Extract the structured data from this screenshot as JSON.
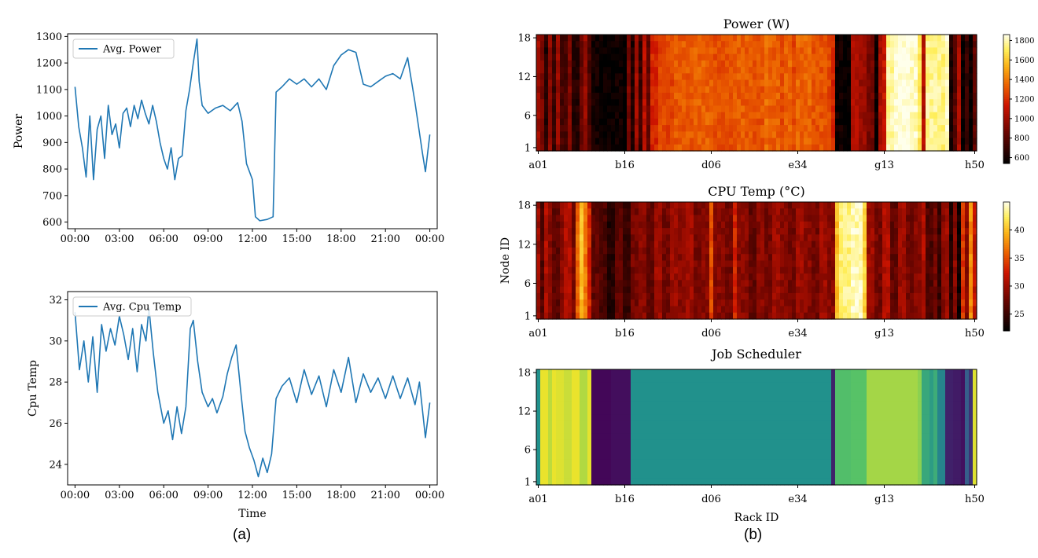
{
  "panels": {
    "a": "(a)",
    "b": "(b)"
  },
  "chart_data": [
    {
      "type": "line",
      "panel": "(a) top",
      "title": "",
      "xlabel": "",
      "ylabel": "Power",
      "legend": "Avg. Power",
      "legend_position": "top-left",
      "xticks": [
        "00:00",
        "03:00",
        "06:00",
        "09:00",
        "12:00",
        "15:00",
        "18:00",
        "21:00",
        "00:00"
      ],
      "yticks": [
        600,
        700,
        800,
        900,
        1000,
        1100,
        1200,
        1300
      ],
      "xlim": [
        -0.5,
        24.5
      ],
      "ylim": [
        575,
        1310
      ],
      "color": "#1f77b4",
      "grid": false,
      "points": [
        [
          0,
          1110
        ],
        [
          0.25,
          960
        ],
        [
          0.5,
          880
        ],
        [
          0.75,
          770
        ],
        [
          1,
          1000
        ],
        [
          1.25,
          760
        ],
        [
          1.5,
          950
        ],
        [
          1.75,
          1000
        ],
        [
          2,
          840
        ],
        [
          2.25,
          1040
        ],
        [
          2.5,
          930
        ],
        [
          2.75,
          970
        ],
        [
          3,
          880
        ],
        [
          3.25,
          1010
        ],
        [
          3.5,
          1030
        ],
        [
          3.75,
          960
        ],
        [
          4,
          1040
        ],
        [
          4.25,
          990
        ],
        [
          4.5,
          1060
        ],
        [
          4.75,
          1010
        ],
        [
          5,
          970
        ],
        [
          5.25,
          1040
        ],
        [
          5.5,
          980
        ],
        [
          5.75,
          900
        ],
        [
          6,
          840
        ],
        [
          6.25,
          800
        ],
        [
          6.5,
          880
        ],
        [
          6.75,
          760
        ],
        [
          7,
          840
        ],
        [
          7.25,
          850
        ],
        [
          7.5,
          1020
        ],
        [
          7.75,
          1100
        ],
        [
          8,
          1200
        ],
        [
          8.25,
          1290
        ],
        [
          8.4,
          1130
        ],
        [
          8.6,
          1040
        ],
        [
          9,
          1010
        ],
        [
          9.5,
          1030
        ],
        [
          10,
          1040
        ],
        [
          10.5,
          1020
        ],
        [
          11,
          1050
        ],
        [
          11.3,
          980
        ],
        [
          11.6,
          820
        ],
        [
          12,
          760
        ],
        [
          12.2,
          620
        ],
        [
          12.5,
          605
        ],
        [
          13,
          610
        ],
        [
          13.4,
          620
        ],
        [
          13.6,
          1090
        ],
        [
          14,
          1110
        ],
        [
          14.5,
          1140
        ],
        [
          15,
          1120
        ],
        [
          15.5,
          1140
        ],
        [
          16,
          1110
        ],
        [
          16.5,
          1140
        ],
        [
          17,
          1100
        ],
        [
          17.5,
          1190
        ],
        [
          18,
          1230
        ],
        [
          18.5,
          1250
        ],
        [
          19,
          1240
        ],
        [
          19.5,
          1120
        ],
        [
          20,
          1110
        ],
        [
          20.5,
          1130
        ],
        [
          21,
          1150
        ],
        [
          21.5,
          1160
        ],
        [
          22,
          1140
        ],
        [
          22.5,
          1220
        ],
        [
          23,
          1050
        ],
        [
          23.5,
          860
        ],
        [
          23.7,
          790
        ],
        [
          24,
          930
        ]
      ]
    },
    {
      "type": "line",
      "panel": "(a) bottom",
      "title": "",
      "xlabel": "Time",
      "ylabel": "Cpu Temp",
      "legend": "Avg. Cpu Temp",
      "legend_position": "top-left",
      "xticks": [
        "00:00",
        "03:00",
        "06:00",
        "09:00",
        "12:00",
        "15:00",
        "18:00",
        "21:00",
        "00:00"
      ],
      "yticks": [
        24,
        26,
        28,
        30,
        32
      ],
      "xlim": [
        -0.5,
        24.5
      ],
      "ylim": [
        23.0,
        32.4
      ],
      "color": "#1f77b4",
      "grid": false,
      "points": [
        [
          0,
          31.4
        ],
        [
          0.3,
          28.6
        ],
        [
          0.6,
          30.0
        ],
        [
          0.9,
          28.0
        ],
        [
          1.2,
          30.2
        ],
        [
          1.5,
          27.5
        ],
        [
          1.8,
          30.8
        ],
        [
          2.1,
          29.5
        ],
        [
          2.4,
          30.6
        ],
        [
          2.7,
          29.8
        ],
        [
          3,
          31.2
        ],
        [
          3.3,
          30.3
        ],
        [
          3.6,
          29.1
        ],
        [
          3.9,
          30.6
        ],
        [
          4.2,
          28.5
        ],
        [
          4.5,
          30.8
        ],
        [
          4.8,
          30.0
        ],
        [
          5,
          31.6
        ],
        [
          5.3,
          29.4
        ],
        [
          5.6,
          27.5
        ],
        [
          6,
          26.0
        ],
        [
          6.3,
          26.6
        ],
        [
          6.6,
          25.2
        ],
        [
          6.9,
          26.8
        ],
        [
          7.2,
          25.5
        ],
        [
          7.5,
          26.8
        ],
        [
          7.8,
          30.6
        ],
        [
          8,
          31.0
        ],
        [
          8.3,
          29.0
        ],
        [
          8.6,
          27.5
        ],
        [
          9,
          26.8
        ],
        [
          9.3,
          27.2
        ],
        [
          9.6,
          26.5
        ],
        [
          10,
          27.3
        ],
        [
          10.3,
          28.4
        ],
        [
          10.6,
          29.2
        ],
        [
          10.9,
          29.8
        ],
        [
          11.2,
          27.6
        ],
        [
          11.5,
          25.6
        ],
        [
          11.8,
          24.8
        ],
        [
          12.1,
          24.2
        ],
        [
          12.4,
          23.4
        ],
        [
          12.7,
          24.3
        ],
        [
          13,
          23.6
        ],
        [
          13.3,
          24.5
        ],
        [
          13.6,
          27.2
        ],
        [
          14,
          27.8
        ],
        [
          14.5,
          28.2
        ],
        [
          15,
          27.0
        ],
        [
          15.5,
          28.6
        ],
        [
          16,
          27.4
        ],
        [
          16.5,
          28.3
        ],
        [
          17,
          26.8
        ],
        [
          17.5,
          28.6
        ],
        [
          18,
          27.5
        ],
        [
          18.5,
          29.2
        ],
        [
          19,
          27.0
        ],
        [
          19.5,
          28.4
        ],
        [
          20,
          27.5
        ],
        [
          20.5,
          28.2
        ],
        [
          21,
          27.2
        ],
        [
          21.5,
          28.3
        ],
        [
          22,
          27.2
        ],
        [
          22.5,
          28.2
        ],
        [
          23,
          26.9
        ],
        [
          23.3,
          28.0
        ],
        [
          23.7,
          25.3
        ],
        [
          24,
          27.0
        ]
      ]
    },
    {
      "type": "heatmap",
      "panel": "(b) top",
      "title": "Power (W)",
      "xlabel": "",
      "ylabel": "",
      "xticks": [
        "a01",
        "b16",
        "d06",
        "e34",
        "g13",
        "h50"
      ],
      "yticks": [
        1,
        6,
        12,
        18
      ],
      "colormap": "afmhot-like (black-red-orange-yellow-white)",
      "colorbar_ticks": [
        600,
        800,
        1000,
        1200,
        1400,
        1600,
        1800
      ],
      "colorbar_range": [
        540,
        1860
      ],
      "nodes": 18,
      "columns": [
        [
          0.0,
          1000
        ],
        [
          0.6,
          560
        ],
        [
          1.3,
          900
        ],
        [
          2.0,
          640
        ],
        [
          3.0,
          950
        ],
        [
          4.0,
          700
        ],
        [
          5.0,
          980
        ],
        [
          6.5,
          760
        ],
        [
          8.0,
          920
        ],
        [
          9.5,
          660
        ],
        [
          11.0,
          840
        ],
        [
          12.0,
          980
        ],
        [
          13.0,
          760
        ],
        [
          14.0,
          600
        ],
        [
          16.5,
          560
        ],
        [
          20.0,
          590
        ],
        [
          22.5,
          540
        ],
        [
          23.5,
          900
        ],
        [
          24.5,
          620
        ],
        [
          25.5,
          1010
        ],
        [
          26.5,
          700
        ],
        [
          27.5,
          1090
        ],
        [
          28.5,
          840
        ],
        [
          29.5,
          1180
        ],
        [
          31.0,
          1260
        ],
        [
          35.0,
          1310
        ],
        [
          40.0,
          1330
        ],
        [
          45.0,
          1290
        ],
        [
          50.0,
          1320
        ],
        [
          55.0,
          1300
        ],
        [
          58.3,
          1360
        ],
        [
          59.0,
          1330
        ],
        [
          62.0,
          1280
        ],
        [
          63.5,
          1340
        ],
        [
          64.6,
          560
        ],
        [
          65.2,
          1270
        ],
        [
          66.5,
          1340
        ],
        [
          70.0,
          1300
        ],
        [
          74.0,
          1260
        ],
        [
          75.5,
          1180
        ],
        [
          76.5,
          590
        ],
        [
          78.5,
          550
        ],
        [
          80.0,
          1050
        ],
        [
          82.5,
          980
        ],
        [
          84.5,
          880
        ],
        [
          85.8,
          560
        ],
        [
          87.0,
          1040
        ],
        [
          88.5,
          1120
        ],
        [
          89.5,
          1780
        ],
        [
          91.0,
          1850
        ],
        [
          95.0,
          1810
        ],
        [
          97.5,
          1700
        ],
        [
          98.5,
          1050
        ],
        [
          99.2,
          1760
        ],
        [
          103.0,
          1740
        ],
        [
          104.0,
          1830
        ],
        [
          105.0,
          620
        ],
        [
          106.0,
          800
        ],
        [
          107.0,
          1040
        ],
        [
          108.0,
          560
        ],
        [
          109.0,
          700
        ],
        [
          109.7,
          1000
        ],
        [
          110.5,
          560
        ],
        [
          111.3,
          820
        ],
        [
          112.0,
          1030
        ]
      ]
    },
    {
      "type": "heatmap",
      "panel": "(b) middle",
      "title": "CPU Temp (°C)",
      "xlabel": "",
      "ylabel": "Node ID",
      "xticks": [
        "a01",
        "b16",
        "d06",
        "e34",
        "g13",
        "h50"
      ],
      "yticks": [
        1,
        6,
        12,
        18
      ],
      "colormap": "afmhot-like (black-red-orange-yellow-white)",
      "colorbar_ticks": [
        25,
        30,
        35,
        40
      ],
      "colorbar_range": [
        22,
        45
      ],
      "nodes": 18,
      "columns": [
        [
          0.0,
          30
        ],
        [
          1.0,
          26
        ],
        [
          2.0,
          31
        ],
        [
          2.8,
          40
        ],
        [
          3.5,
          29
        ],
        [
          4.5,
          27
        ],
        [
          6.0,
          29
        ],
        [
          7.5,
          31
        ],
        [
          9.0,
          28
        ],
        [
          10.2,
          36
        ],
        [
          11.0,
          40
        ],
        [
          12.0,
          37
        ],
        [
          13.0,
          33
        ],
        [
          14.0,
          27
        ],
        [
          16.0,
          26
        ],
        [
          18.0,
          24
        ],
        [
          20.0,
          27
        ],
        [
          22.0,
          25
        ],
        [
          24.0,
          28
        ],
        [
          26.0,
          29
        ],
        [
          28.0,
          27
        ],
        [
          30.0,
          30
        ],
        [
          32.0,
          28
        ],
        [
          34.0,
          30
        ],
        [
          36.0,
          29
        ],
        [
          38.0,
          30
        ],
        [
          40.0,
          28
        ],
        [
          42.0,
          29
        ],
        [
          44.5,
          35
        ],
        [
          45.3,
          29
        ],
        [
          48.0,
          28
        ],
        [
          50.0,
          30
        ],
        [
          50.5,
          33
        ],
        [
          51.2,
          29
        ],
        [
          54.0,
          27
        ],
        [
          56.0,
          29
        ],
        [
          58.0,
          28
        ],
        [
          60.0,
          30
        ],
        [
          62.0,
          29
        ],
        [
          64.0,
          28
        ],
        [
          66.0,
          30
        ],
        [
          68.0,
          29
        ],
        [
          70.0,
          28
        ],
        [
          72.0,
          30
        ],
        [
          74.0,
          29
        ],
        [
          76.5,
          40
        ],
        [
          77.0,
          43
        ],
        [
          80.0,
          44
        ],
        [
          83.0,
          41
        ],
        [
          84.5,
          30
        ],
        [
          86.0,
          28
        ],
        [
          88.0,
          31
        ],
        [
          90.0,
          27
        ],
        [
          92.0,
          30
        ],
        [
          94.0,
          28
        ],
        [
          96.0,
          29
        ],
        [
          98.0,
          31
        ],
        [
          99.5,
          26
        ],
        [
          101.0,
          28
        ],
        [
          102.0,
          25
        ],
        [
          103.0,
          29
        ],
        [
          104.5,
          30
        ],
        [
          105.5,
          24
        ],
        [
          106.5,
          29
        ],
        [
          107.5,
          23
        ],
        [
          108.5,
          34
        ],
        [
          109.5,
          29
        ],
        [
          110.5,
          38
        ],
        [
          111.3,
          32
        ],
        [
          112.0,
          29
        ]
      ]
    },
    {
      "type": "heatmap",
      "panel": "(b) bottom",
      "title": "Job Scheduler",
      "xlabel": "Rack ID",
      "ylabel": "",
      "xticks": [
        "a01",
        "b16",
        "d06",
        "e34",
        "g13",
        "h50"
      ],
      "yticks": [
        1,
        6,
        12,
        18
      ],
      "colormap": "viridis",
      "colorbar": false,
      "nodes": 18,
      "columns": [
        [
          0.0,
          0.95
        ],
        [
          0.4,
          0.5
        ],
        [
          1.0,
          0.97
        ],
        [
          1.8,
          0.82
        ],
        [
          2.5,
          0.97
        ],
        [
          3.0,
          0.08
        ],
        [
          3.5,
          0.9
        ],
        [
          4.2,
          0.97
        ],
        [
          4.8,
          0.5
        ],
        [
          5.3,
          0.95
        ],
        [
          7.0,
          0.92
        ],
        [
          9.0,
          0.97
        ],
        [
          11.5,
          0.88
        ],
        [
          13.0,
          0.96
        ],
        [
          14.0,
          0.02
        ],
        [
          19.0,
          0.04
        ],
        [
          24.0,
          0.5
        ],
        [
          30.0,
          0.5
        ],
        [
          40.0,
          0.5
        ],
        [
          50.0,
          0.5
        ],
        [
          60.0,
          0.5
        ],
        [
          70.0,
          0.5
        ],
        [
          75.0,
          0.5
        ],
        [
          75.5,
          0.1
        ],
        [
          76.5,
          0.7
        ],
        [
          80.0,
          0.72
        ],
        [
          84.0,
          0.86
        ],
        [
          90.0,
          0.86
        ],
        [
          95.0,
          0.86
        ],
        [
          97.5,
          0.82
        ],
        [
          98.5,
          0.6
        ],
        [
          100.0,
          0.55
        ],
        [
          101.5,
          0.62
        ],
        [
          102.5,
          0.45
        ],
        [
          104.5,
          0.1
        ],
        [
          106.5,
          0.08
        ],
        [
          108.5,
          0.05
        ],
        [
          109.5,
          0.3
        ],
        [
          110.5,
          0.15
        ],
        [
          111.3,
          0.95
        ],
        [
          112.0,
          0.95
        ]
      ]
    }
  ]
}
